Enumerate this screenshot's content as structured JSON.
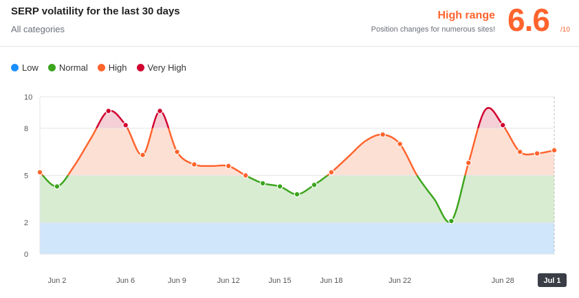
{
  "header": {
    "title": "SERP volatility for the last 30 days",
    "subtitle": "All categories",
    "range_label": "High range",
    "range_desc": "Position changes for numerous sites!",
    "score": "6.6",
    "score_max": "/10"
  },
  "legend": [
    {
      "label": "Low",
      "color": "#1a8fff"
    },
    {
      "label": "Normal",
      "color": "#3ca51e"
    },
    {
      "label": "High",
      "color": "#ff642d"
    },
    {
      "label": "Very High",
      "color": "#d1002f"
    }
  ],
  "chart_data": {
    "type": "line",
    "title": "SERP volatility for the last 30 days",
    "xlabel": "",
    "ylabel": "",
    "ylim": [
      0,
      10
    ],
    "y_ticks": [
      0,
      2,
      5,
      8,
      10
    ],
    "x_ticks": [
      "Jun 2",
      "Jun 6",
      "Jun 9",
      "Jun 12",
      "Jun 15",
      "Jun 18",
      "Jun 22",
      "Jun 28",
      "Jul 1"
    ],
    "x": [
      "Jun 1",
      "Jun 2",
      "Jun 3",
      "Jun 4",
      "Jun 5",
      "Jun 6",
      "Jun 7",
      "Jun 8",
      "Jun 9",
      "Jun 10",
      "Jun 11",
      "Jun 12",
      "Jun 13",
      "Jun 14",
      "Jun 15",
      "Jun 16",
      "Jun 17",
      "Jun 18",
      "Jun 19",
      "Jun 20",
      "Jun 21",
      "Jun 22",
      "Jun 23",
      "Jun 24",
      "Jun 25",
      "Jun 26",
      "Jun 27",
      "Jun 28",
      "Jun 29",
      "Jun 30",
      "Jul 1"
    ],
    "values": [
      5.2,
      4.3,
      5.6,
      7.4,
      9.1,
      8.2,
      6.3,
      9.1,
      6.5,
      5.7,
      5.6,
      5.6,
      5.0,
      4.5,
      4.3,
      3.8,
      4.4,
      5.2,
      6.2,
      7.2,
      7.6,
      7.0,
      5.0,
      3.5,
      2.1,
      5.8,
      9.2,
      8.2,
      6.5,
      6.4,
      6.6
    ],
    "marked_indices": [
      0,
      1,
      4,
      5,
      6,
      7,
      8,
      9,
      11,
      12,
      13,
      14,
      15,
      16,
      17,
      20,
      21,
      24,
      25,
      27,
      28,
      29,
      30
    ],
    "bands": [
      {
        "name": "Low",
        "from": 0,
        "to": 2,
        "fill": "#cfe6fb"
      },
      {
        "name": "Normal",
        "from": 2,
        "to": 5,
        "fill": "#d8ecd2"
      },
      {
        "name": "High",
        "from": 5,
        "to": 8,
        "fill": "#fde0d4"
      },
      {
        "name": "Very High",
        "from": 8,
        "to": 10,
        "fill": "#f4cfd6"
      }
    ],
    "line_colors": {
      "low": "#1a8fff",
      "normal": "#3ca51e",
      "high": "#ff642d",
      "very_high": "#d1002f"
    },
    "highlighted_tick": "Jul 1",
    "grid": true
  }
}
